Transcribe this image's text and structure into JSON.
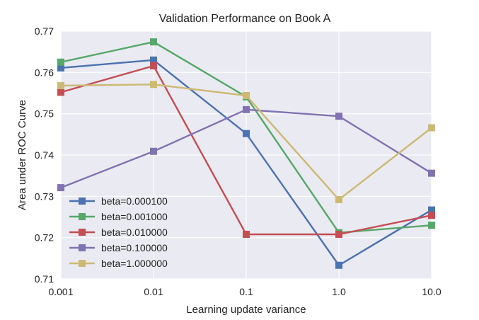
{
  "chart_data": {
    "type": "line",
    "title": "Validation Performance on Book A",
    "xlabel": "Learning update variance",
    "ylabel": "Area under ROC Curve",
    "x_scale": "log",
    "categories": [
      "0.001",
      "0.01",
      "0.1",
      "1.0",
      "10.0"
    ],
    "x": [
      0.001,
      0.01,
      0.1,
      1.0,
      10.0
    ],
    "ylim": [
      0.71,
      0.77
    ],
    "yticks": [
      "0.71",
      "0.72",
      "0.73",
      "0.74",
      "0.75",
      "0.76",
      "0.77"
    ],
    "grid": true,
    "legend_position": "lower-left",
    "background": "#eaeaf2",
    "series": [
      {
        "name": "beta=0.000100",
        "color": "#4c72b0",
        "values": [
          0.7611,
          0.763,
          0.7452,
          0.7133,
          0.7267
        ]
      },
      {
        "name": "beta=0.001000",
        "color": "#55a868",
        "values": [
          0.7625,
          0.7674,
          0.7541,
          0.7212,
          0.723
        ]
      },
      {
        "name": "beta=0.010000",
        "color": "#c44e52",
        "values": [
          0.7552,
          0.7616,
          0.7208,
          0.7208,
          0.7254
        ]
      },
      {
        "name": "beta=0.100000",
        "color": "#8172b2",
        "values": [
          0.7321,
          0.7409,
          0.751,
          0.7494,
          0.7356
        ]
      },
      {
        "name": "beta=1.000000",
        "color": "#ccb974",
        "values": [
          0.7568,
          0.7571,
          0.7544,
          0.7292,
          0.7466
        ]
      }
    ]
  }
}
